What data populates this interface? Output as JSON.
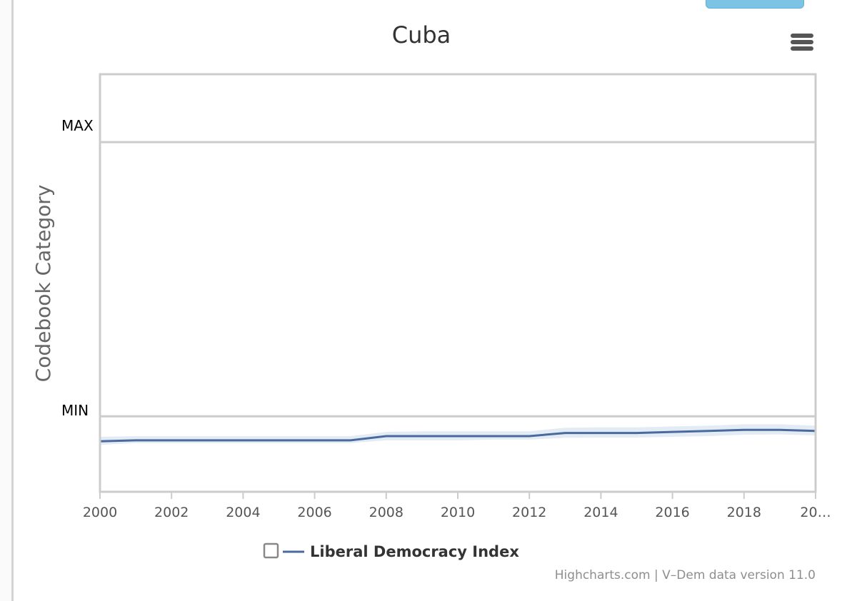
{
  "credit": "Highcharts.com | V–Dem data version 11.0",
  "menu": {
    "icon": "hamburger-menu-icon"
  },
  "colors": {
    "series": "#4a6a9e",
    "band": "#dce6f3",
    "grid": "#cccccc"
  },
  "chart_data": {
    "type": "line",
    "title": "Cuba",
    "ylabel": "Codebook Category",
    "y_categories": [
      "MIN",
      "MAX"
    ],
    "xlim": [
      2000,
      2020
    ],
    "ylim": [
      -0.1,
      1.1
    ],
    "x_ticks": [
      "2000",
      "2002",
      "2004",
      "2006",
      "2008",
      "2010",
      "2012",
      "2014",
      "2016",
      "2018",
      "20…"
    ],
    "x_tick_values": [
      2000,
      2002,
      2004,
      2006,
      2008,
      2010,
      2012,
      2014,
      2016,
      2018,
      2020
    ],
    "legend": {
      "position": "bottom",
      "entries": [
        "Liberal Democracy Index"
      ]
    },
    "series": [
      {
        "name": "Liberal Democracy Index",
        "x": [
          2000,
          2001,
          2002,
          2003,
          2004,
          2005,
          2006,
          2007,
          2008,
          2009,
          2010,
          2011,
          2012,
          2013,
          2014,
          2015,
          2016,
          2017,
          2018,
          2019,
          2020
        ],
        "values": [
          0.045,
          0.048,
          0.048,
          0.048,
          0.048,
          0.048,
          0.048,
          0.048,
          0.06,
          0.06,
          0.06,
          0.06,
          0.06,
          0.069,
          0.069,
          0.069,
          0.072,
          0.075,
          0.078,
          0.078,
          0.075
        ],
        "lower": [
          0.035,
          0.04,
          0.04,
          0.04,
          0.04,
          0.04,
          0.04,
          0.04,
          0.048,
          0.048,
          0.048,
          0.05,
          0.05,
          0.055,
          0.056,
          0.056,
          0.058,
          0.06,
          0.064,
          0.065,
          0.062
        ],
        "upper": [
          0.058,
          0.06,
          0.06,
          0.06,
          0.06,
          0.06,
          0.06,
          0.06,
          0.072,
          0.074,
          0.074,
          0.074,
          0.074,
          0.084,
          0.085,
          0.085,
          0.088,
          0.09,
          0.094,
          0.094,
          0.09
        ]
      }
    ]
  }
}
